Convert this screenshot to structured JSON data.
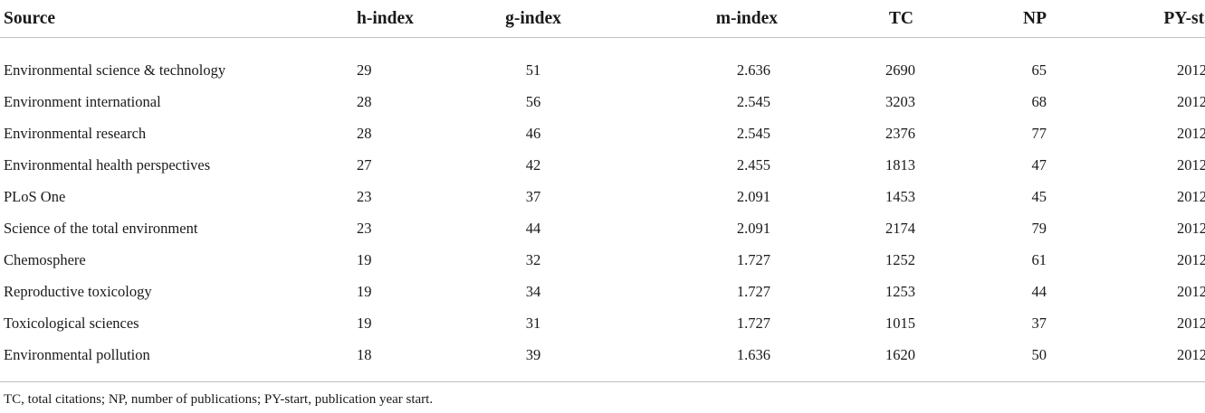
{
  "table": {
    "headers": [
      "Source",
      "h-index",
      "g-index",
      "m-index",
      "TC",
      "NP",
      "PY-start"
    ],
    "rows": [
      [
        "Environmental science & technology",
        "29",
        "51",
        "2.636",
        "2690",
        "65",
        "2012"
      ],
      [
        "Environment international",
        "28",
        "56",
        "2.545",
        "3203",
        "68",
        "2012"
      ],
      [
        "Environmental research",
        "28",
        "46",
        "2.545",
        "2376",
        "77",
        "2012"
      ],
      [
        "Environmental health perspectives",
        "27",
        "42",
        "2.455",
        "1813",
        "47",
        "2012"
      ],
      [
        "PLoS One",
        "23",
        "37",
        "2.091",
        "1453",
        "45",
        "2012"
      ],
      [
        "Science of the total environment",
        "23",
        "44",
        "2.091",
        "2174",
        "79",
        "2012"
      ],
      [
        "Chemosphere",
        "19",
        "32",
        "1.727",
        "1252",
        "61",
        "2012"
      ],
      [
        "Reproductive toxicology",
        "19",
        "34",
        "1.727",
        "1253",
        "44",
        "2012"
      ],
      [
        "Toxicological sciences",
        "19",
        "31",
        "1.727",
        "1015",
        "37",
        "2012"
      ],
      [
        "Environmental pollution",
        "18",
        "39",
        "1.636",
        "1620",
        "50",
        "2012"
      ]
    ]
  },
  "footnote": "TC, total citations; NP, number of publications; PY-start, publication year start."
}
